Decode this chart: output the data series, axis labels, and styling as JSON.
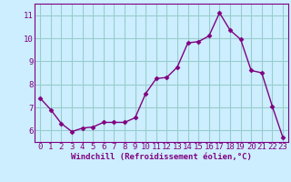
{
  "x": [
    0,
    1,
    2,
    3,
    4,
    5,
    6,
    7,
    8,
    9,
    10,
    11,
    12,
    13,
    14,
    15,
    16,
    17,
    18,
    19,
    20,
    21,
    22,
    23
  ],
  "y": [
    7.4,
    6.9,
    6.3,
    5.95,
    6.1,
    6.15,
    6.35,
    6.35,
    6.35,
    6.55,
    7.6,
    8.25,
    8.3,
    8.75,
    9.8,
    9.85,
    10.1,
    11.1,
    10.35,
    9.95,
    8.6,
    8.5,
    7.05,
    5.7
  ],
  "line_color": "#800080",
  "marker": "D",
  "marker_size": 2.5,
  "bg_color": "#cceeff",
  "grid_color": "#99cccc",
  "xlabel": "Windchill (Refroidissement éolien,°C)",
  "ylim": [
    5.5,
    11.5
  ],
  "xlim": [
    -0.5,
    23.5
  ],
  "yticks": [
    6,
    7,
    8,
    9,
    10,
    11
  ],
  "xticks": [
    0,
    1,
    2,
    3,
    4,
    5,
    6,
    7,
    8,
    9,
    10,
    11,
    12,
    13,
    14,
    15,
    16,
    17,
    18,
    19,
    20,
    21,
    22,
    23
  ],
  "tick_label_size": 6.5,
  "xlabel_size": 6.5,
  "linewidth": 1.0,
  "spine_color": "#800080"
}
